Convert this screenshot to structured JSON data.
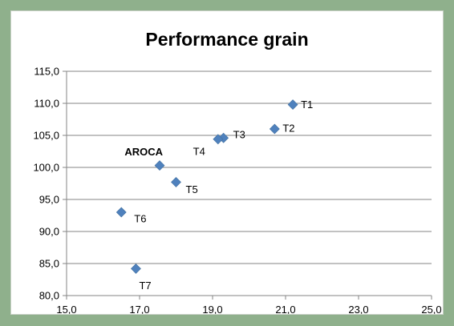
{
  "chart_data": {
    "type": "scatter",
    "title": "Performance grain",
    "xlabel": "",
    "ylabel": "",
    "xlim": [
      15.0,
      25.0
    ],
    "ylim": [
      80.0,
      115.0
    ],
    "x_ticks": [
      "15,0",
      "17,0",
      "19,0",
      "21,0",
      "23,0",
      "25,0"
    ],
    "y_ticks": [
      "80,0",
      "85,0",
      "90,0",
      "95,0",
      "100,0",
      "105,0",
      "110,0",
      "115,0"
    ],
    "grid": "horizontal",
    "marker": "diamond",
    "colors": {
      "marker": "#4f81bd",
      "highlight_label": "#ff0000",
      "frame_background": "#8fb08c"
    },
    "points": [
      {
        "label": "T1",
        "x": 21.2,
        "y": 109.8
      },
      {
        "label": "T2",
        "x": 20.7,
        "y": 106.0
      },
      {
        "label": "T3",
        "x": 19.3,
        "y": 104.6
      },
      {
        "label": "T4",
        "x": 19.15,
        "y": 104.4
      },
      {
        "label": "AROCA",
        "x": 17.55,
        "y": 100.3,
        "highlight": true
      },
      {
        "label": "T5",
        "x": 18.0,
        "y": 97.7
      },
      {
        "label": "T6",
        "x": 16.5,
        "y": 93.0
      },
      {
        "label": "T7",
        "x": 16.9,
        "y": 84.2
      }
    ]
  }
}
